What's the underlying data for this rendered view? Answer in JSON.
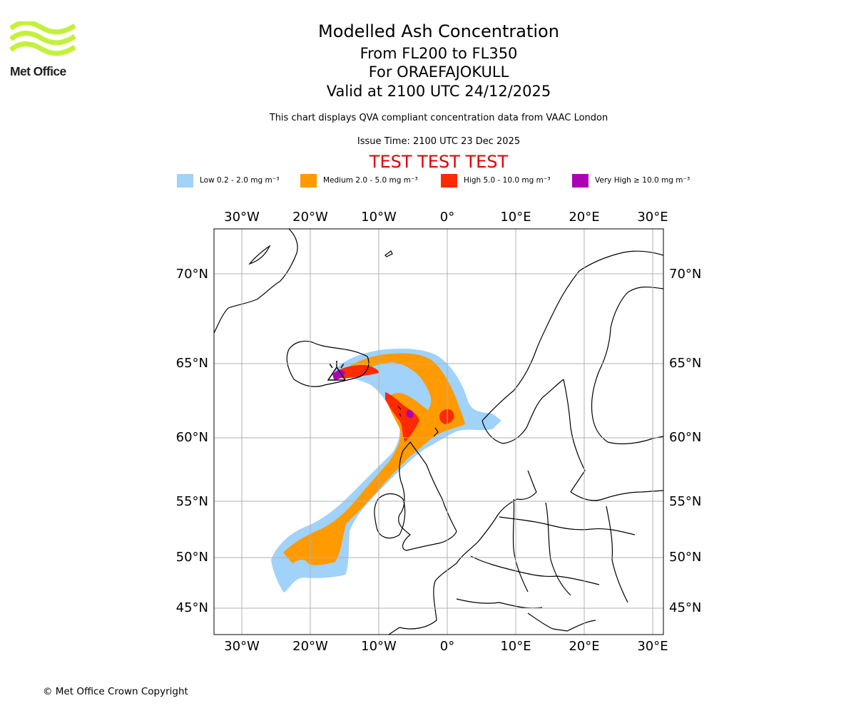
{
  "logo": {
    "brand": "Met Office",
    "colors": {
      "waves": "#c3f13b",
      "text": "#231f20"
    }
  },
  "header": {
    "title": "Modelled Ash Concentration",
    "flight_levels": "From FL200 to FL350",
    "volcano": "For ORAEFAJOKULL",
    "valid_time": "Valid at 2100 UTC 24/12/2025",
    "description": "This chart displays QVA compliant concentration data from VAAC London",
    "issue_time": "Issue Time: 2100 UTC 23 Dec 2025",
    "test_banner": "TEST TEST TEST",
    "test_color": "#e00000"
  },
  "legend": [
    {
      "label": "Low 0.2 - 2.0 mg m⁻³",
      "color": "#a0d2fa",
      "icon": "low-swatch"
    },
    {
      "label": "Medium 2.0 - 5.0 mg m⁻³",
      "color": "#ff9a00",
      "icon": "medium-swatch"
    },
    {
      "label": "High 5.0 - 10.0 mg m⁻³",
      "color": "#ff2a00",
      "icon": "high-swatch"
    },
    {
      "label": "Very High ≥ 10.0 mg m⁻³",
      "color": "#ae00b4",
      "icon": "very-high-swatch"
    }
  ],
  "map": {
    "projection": "Stereographic",
    "lon_ticks": [
      "30°W",
      "20°W",
      "10°W",
      "0°",
      "10°E",
      "20°E",
      "30°E"
    ],
    "lat_ticks": [
      "70°N",
      "65°N",
      "60°N",
      "55°N",
      "50°N",
      "45°N"
    ],
    "gridline_color": "#b0b0b0",
    "coastline_color": "#000000"
  },
  "footer": {
    "copyright": "© Met Office Crown Copyright"
  }
}
